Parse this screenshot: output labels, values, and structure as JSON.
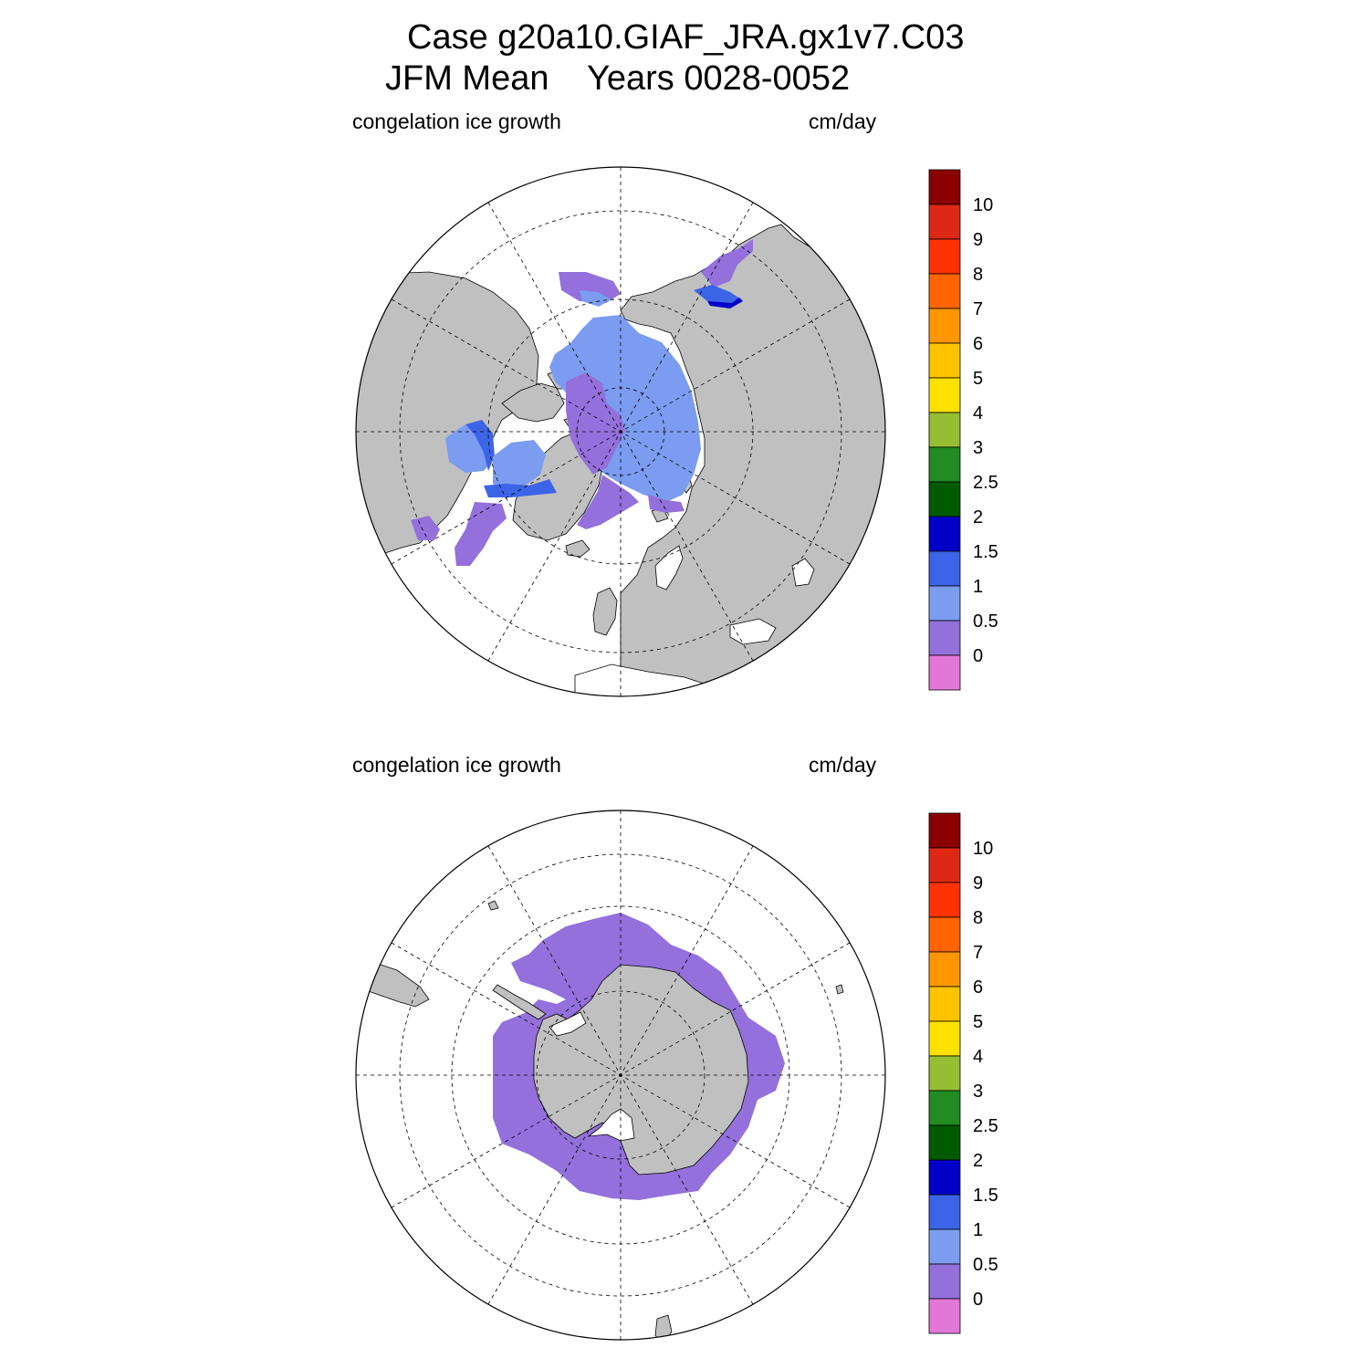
{
  "title": {
    "line1": "Case g20a10.GIAF_JRA.gx1v7.C03",
    "line2": "JFM Mean    Years 0028-0052"
  },
  "panels": [
    {
      "hemisphere": "north",
      "variable_label": "congelation ice growth",
      "units_label": "cm/day"
    },
    {
      "hemisphere": "south",
      "variable_label": "congelation ice growth",
      "units_label": "cm/day"
    }
  ],
  "colorbar": {
    "levels": [
      "0",
      "0.5",
      "1",
      "1.5",
      "2",
      "2.5",
      "3",
      "4",
      "5",
      "6",
      "7",
      "8",
      "9",
      "10"
    ],
    "colors": [
      "#e377d7",
      "#9370db",
      "#7b9cf0",
      "#3c64e6",
      "#0000c8",
      "#005a00",
      "#228b22",
      "#96be32",
      "#ffe100",
      "#ffc300",
      "#ff9600",
      "#ff6400",
      "#ff3200",
      "#dc2814",
      "#8b0000"
    ]
  },
  "map_colors": {
    "land": "#c0c0c0",
    "ocean": "#ffffff",
    "ice_low": "#9370db",
    "ice_mid": "#7b9cf0",
    "ice_high": "#3c64e6",
    "ice_max": "#0000c8"
  }
}
